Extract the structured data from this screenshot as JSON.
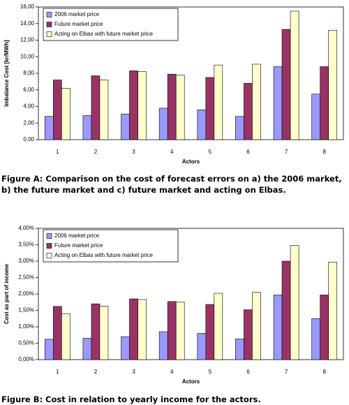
{
  "chart_data": [
    {
      "type": "bar",
      "caption": "Figure A: Comparison on the cost of forecast errors on a) the 2006 market, b) the future market and c) future market and acting on Elbas.",
      "ylabel": "Imbalance Cost [kr/MWh]",
      "xlabel": "Actors",
      "categories": [
        "1",
        "2",
        "3",
        "4",
        "5",
        "6",
        "7",
        "8"
      ],
      "series": [
        {
          "name": "2006 market price",
          "color": "#9999ff",
          "values": [
            2.8,
            2.9,
            3.1,
            3.8,
            3.6,
            2.8,
            8.8,
            5.5
          ]
        },
        {
          "name": "Future market price",
          "color": "#993366",
          "values": [
            7.2,
            7.7,
            8.3,
            7.9,
            7.5,
            6.8,
            13.3,
            8.8
          ]
        },
        {
          "name": "Acting on Elbas with future market price",
          "color": "#ffffcc",
          "values": [
            6.2,
            7.2,
            8.2,
            7.8,
            9.0,
            9.1,
            15.5,
            13.2
          ]
        }
      ],
      "ylim": [
        0,
        16
      ],
      "yticks": [
        {
          "value": 0,
          "label": "0,00"
        },
        {
          "value": 2,
          "label": "2,00"
        },
        {
          "value": 4,
          "label": "4,00"
        },
        {
          "value": 6,
          "label": "6,00"
        },
        {
          "value": 8,
          "label": "8,00"
        },
        {
          "value": 10,
          "label": "10,00"
        },
        {
          "value": 12,
          "label": "12,00"
        },
        {
          "value": 14,
          "label": "14,00"
        },
        {
          "value": 16,
          "label": "16,00"
        }
      ],
      "legend": "upper left"
    },
    {
      "type": "bar",
      "caption": "Figure B: Cost in relation to yearly income for the actors.",
      "ylabel": "Cost as part of income",
      "xlabel": "Actors",
      "categories": [
        "1",
        "2",
        "3",
        "4",
        "5",
        "6",
        "7",
        "8"
      ],
      "series": [
        {
          "name": "2006 market price",
          "color": "#9999ff",
          "values": [
            0.62,
            0.65,
            0.7,
            0.85,
            0.8,
            0.63,
            1.97,
            1.25
          ]
        },
        {
          "name": "Future market price",
          "color": "#993366",
          "values": [
            1.62,
            1.7,
            1.85,
            1.77,
            1.68,
            1.52,
            3.0,
            1.97
          ]
        },
        {
          "name": "Acting on Elbas with future market price",
          "color": "#ffffcc",
          "values": [
            1.4,
            1.63,
            1.83,
            1.75,
            2.02,
            2.05,
            3.48,
            2.97
          ]
        }
      ],
      "ylim": [
        0,
        4
      ],
      "yticks": [
        {
          "value": 0,
          "label": "0,00%"
        },
        {
          "value": 0.5,
          "label": "0,50%"
        },
        {
          "value": 1,
          "label": "1,00%"
        },
        {
          "value": 1.5,
          "label": "1,50%"
        },
        {
          "value": 2,
          "label": "2,00%"
        },
        {
          "value": 2.5,
          "label": "2,50%"
        },
        {
          "value": 3,
          "label": "3,00%"
        },
        {
          "value": 3.5,
          "label": "3,50%"
        },
        {
          "value": 4,
          "label": "4,00%"
        }
      ],
      "legend": "upper left"
    }
  ]
}
